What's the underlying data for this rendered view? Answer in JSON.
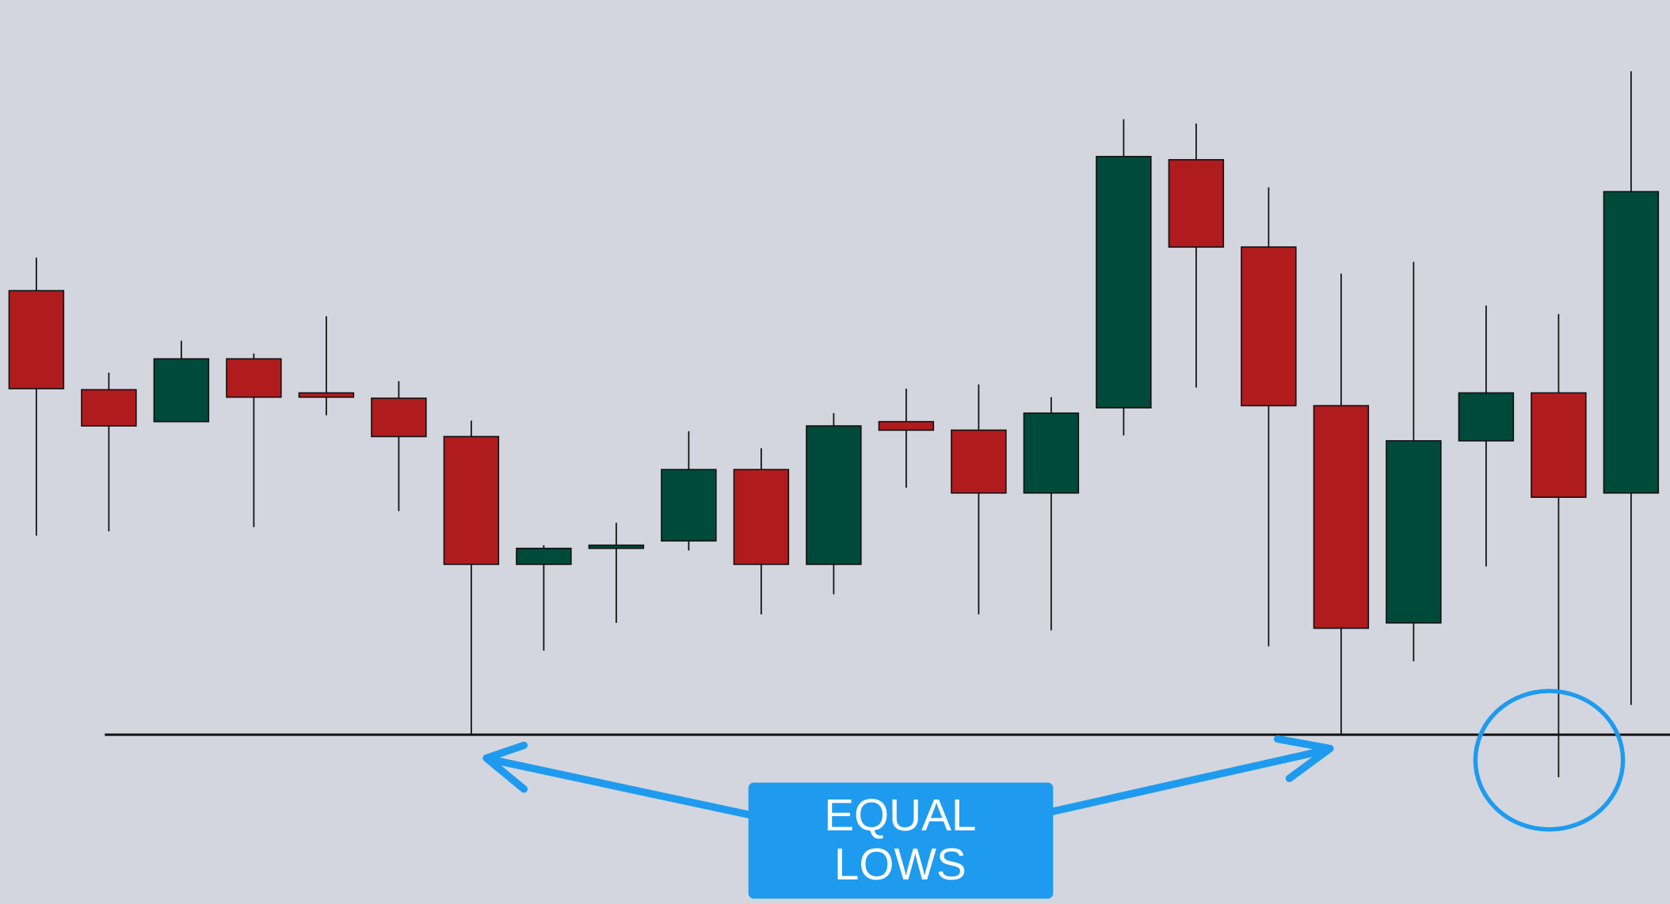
{
  "chart_data": {
    "type": "candlestick",
    "up_color": "#004a3c",
    "down_color": "#b01c1e",
    "ylim": [
      0,
      849
    ],
    "open": [
      576,
      483,
      453,
      512,
      480,
      475,
      439,
      319,
      334,
      341,
      408,
      319,
      453,
      445,
      386,
      466,
      699,
      617,
      468,
      264,
      435,
      480,
      386
    ],
    "high": [
      607,
      499,
      529,
      517,
      552,
      491,
      454,
      337,
      358,
      444,
      428,
      461,
      484,
      488,
      476,
      737,
      733,
      673,
      592,
      603,
      562,
      554,
      782
    ],
    "low": [
      346,
      350,
      453,
      354,
      459,
      369,
      159,
      238,
      264,
      332,
      272,
      291,
      391,
      272,
      257,
      440,
      485,
      242,
      159,
      228,
      317,
      119,
      187
    ],
    "close": [
      484,
      449,
      512,
      476,
      476,
      439,
      319,
      334,
      337,
      408,
      319,
      449,
      445,
      386,
      461,
      702,
      617,
      468,
      259,
      435,
      480,
      382,
      669
    ],
    "level": 159,
    "annotation": [
      "EQUAL",
      "LOWS"
    ],
    "annotation_color": "#1e9bef"
  }
}
